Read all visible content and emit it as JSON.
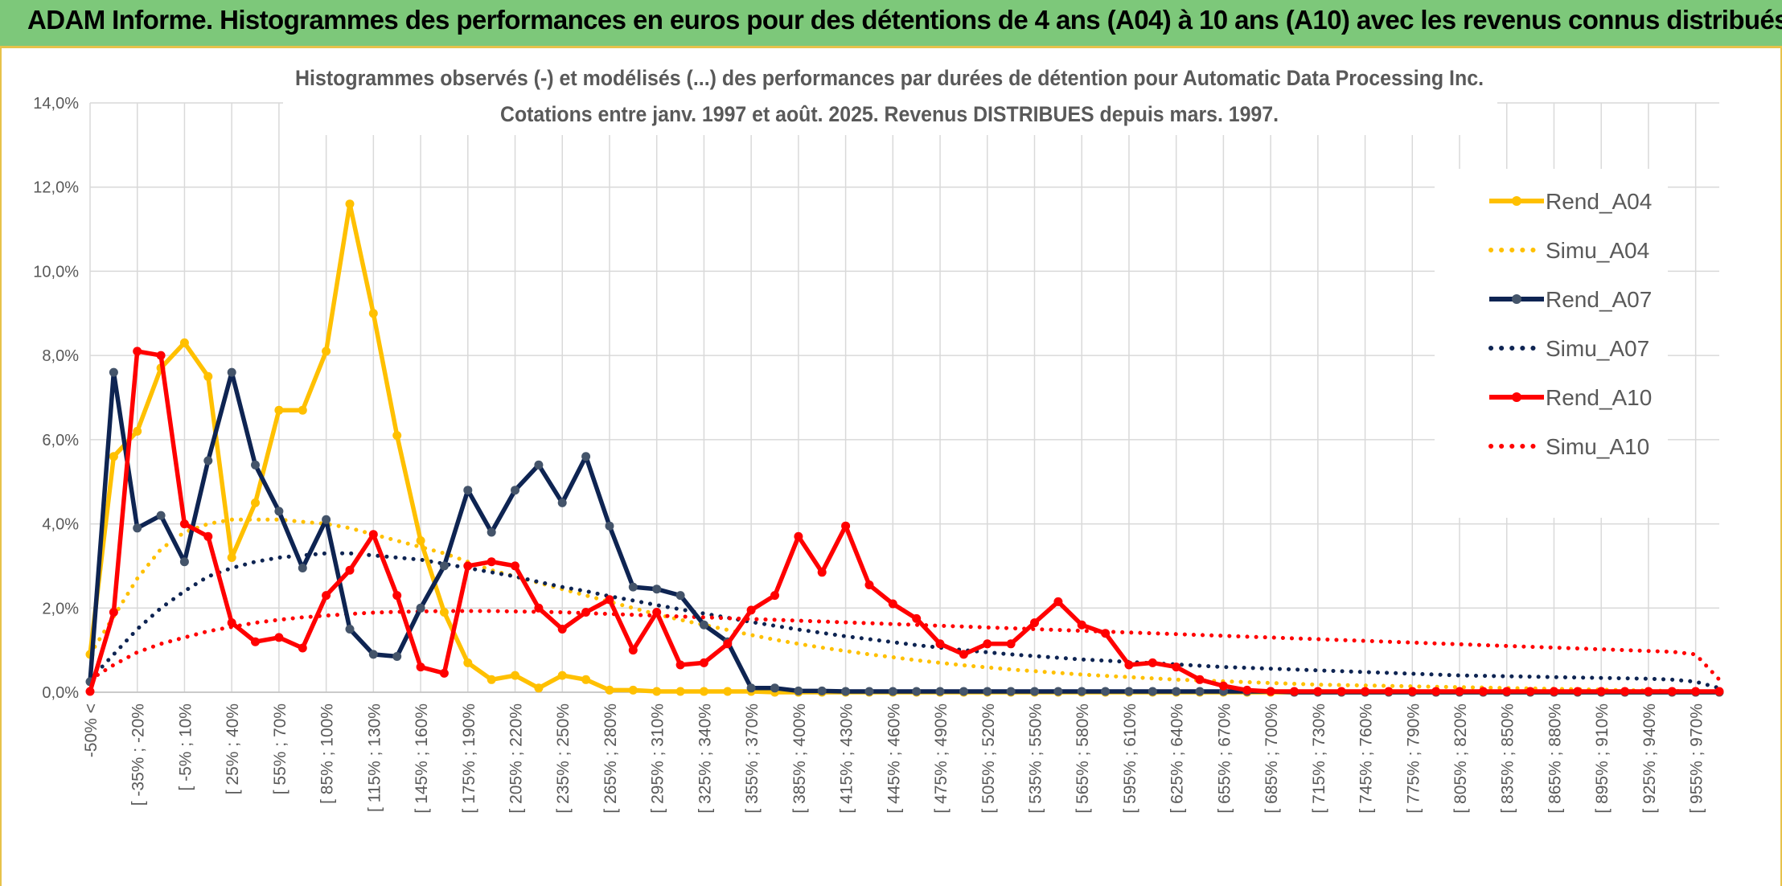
{
  "banner": {
    "title": "ADAM Informe. Histogrammes des performances en euros pour des détentions de 4 ans (A04) à 10 ans (A10) avec les revenus connus distribués"
  },
  "chart_data": {
    "type": "line",
    "title_line1": "Histogrammes observés (-) et modélisés (...) des performances par durées de détention pour Automatic Data Processing Inc.",
    "title_line2": "Cotations entre janv. 1997 et août. 2025. Revenus DISTRIBUES depuis mars. 1997.",
    "ylim": [
      0,
      14
    ],
    "y_ticks": [
      "0,0%",
      "2,0%",
      "4,0%",
      "6,0%",
      "8,0%",
      "10,0%",
      "12,0%",
      "14,0%"
    ],
    "x_tick_labels": [
      "-50% <",
      "[ -35% ; -20%",
      "[ -5% ; 10%",
      "[ 25% ; 40%",
      "[ 55% ; 70%",
      "[ 85% ; 100%",
      "[ 115% ; 130%",
      "[ 145% ; 160%",
      "[ 175% ; 190%",
      "[ 205% ; 220%",
      "[ 235% ; 250%",
      "[ 265% ; 280%",
      "[ 295% ; 310%",
      "[ 325% ; 340%",
      "[ 355% ; 370%",
      "[ 385% ; 400%",
      "[ 415% ; 430%",
      "[ 445% ; 460%",
      "[ 475% ; 490%",
      "[ 505% ; 520%",
      "[ 535% ; 550%",
      "[ 565% ; 580%",
      "[ 595% ; 610%",
      "[ 625% ; 640%",
      "[ 655% ; 670%",
      "[ 685% ; 700%",
      "[ 715% ; 730%",
      "[ 745% ; 760%",
      "[ 775% ; 790%",
      "[ 805% ; 820%",
      "[ 835% ; 850%",
      "[ 865% ; 880%",
      "[ 895% ; 910%",
      "[ 925% ; 940%",
      "[ 955% ; 970%"
    ],
    "category_count": 70,
    "legend_position": "right",
    "grid": true,
    "series": [
      {
        "name": "Rend_A04",
        "color": "#ffc000",
        "style": "solid",
        "markers": true,
        "values": [
          0.9,
          5.6,
          6.2,
          7.7,
          8.3,
          7.5,
          3.2,
          4.5,
          6.7,
          6.7,
          8.1,
          11.6,
          9.0,
          6.1,
          3.6,
          1.9,
          0.7,
          0.3,
          0.4,
          0.1,
          0.4,
          0.3,
          0.05,
          0.05,
          0.02,
          0.02,
          0.02,
          0.02,
          0.02,
          0,
          0,
          0,
          0,
          0,
          0,
          0,
          0,
          0,
          0,
          0,
          0,
          0,
          0,
          0,
          0,
          0,
          0,
          0,
          0,
          0,
          0,
          0,
          0,
          0,
          0,
          0,
          0,
          0,
          0,
          0,
          0,
          0,
          0,
          0,
          0,
          0,
          0,
          0,
          0,
          0
        ]
      },
      {
        "name": "Simu_A04",
        "color": "#ffc000",
        "style": "dotted",
        "markers": false,
        "values": [
          0.9,
          1.8,
          2.7,
          3.4,
          3.8,
          4.0,
          4.1,
          4.1,
          4.1,
          4.05,
          4.0,
          3.9,
          3.75,
          3.6,
          3.45,
          3.3,
          3.1,
          2.9,
          2.75,
          2.6,
          2.45,
          2.3,
          2.15,
          2.0,
          1.85,
          1.72,
          1.6,
          1.48,
          1.36,
          1.25,
          1.15,
          1.06,
          0.98,
          0.9,
          0.83,
          0.76,
          0.7,
          0.64,
          0.59,
          0.54,
          0.5,
          0.46,
          0.42,
          0.39,
          0.36,
          0.33,
          0.3,
          0.28,
          0.26,
          0.24,
          0.22,
          0.2,
          0.18,
          0.17,
          0.16,
          0.15,
          0.14,
          0.13,
          0.12,
          0.11,
          0.1,
          0.09,
          0.08,
          0.07,
          0.06,
          0.05,
          0.04,
          0.03,
          0.02,
          0.01
        ]
      },
      {
        "name": "Rend_A07",
        "color": "#0e2452",
        "style": "solid",
        "markers": true,
        "values": [
          0.25,
          7.6,
          3.9,
          4.2,
          3.1,
          5.5,
          7.6,
          5.4,
          4.3,
          2.95,
          4.1,
          1.5,
          0.9,
          0.85,
          2.0,
          3.0,
          4.8,
          3.8,
          4.8,
          5.4,
          4.5,
          5.6,
          3.95,
          2.5,
          2.45,
          2.3,
          1.6,
          1.2,
          0.1,
          0.1,
          0.03,
          0.03,
          0.02,
          0.02,
          0.02,
          0.02,
          0.02,
          0.02,
          0.02,
          0.02,
          0.02,
          0.02,
          0.02,
          0.02,
          0.02,
          0.02,
          0.02,
          0.02,
          0.02,
          0.02,
          0.02,
          0,
          0,
          0,
          0,
          0,
          0,
          0,
          0,
          0,
          0,
          0,
          0,
          0,
          0,
          0,
          0,
          0,
          0,
          0
        ]
      },
      {
        "name": "Simu_A07",
        "color": "#0e2452",
        "style": "dotted",
        "markers": false,
        "values": [
          0.3,
          0.9,
          1.5,
          2.0,
          2.4,
          2.75,
          2.95,
          3.1,
          3.2,
          3.25,
          3.3,
          3.3,
          3.25,
          3.2,
          3.15,
          3.05,
          2.95,
          2.85,
          2.75,
          2.62,
          2.5,
          2.4,
          2.28,
          2.18,
          2.07,
          1.97,
          1.87,
          1.77,
          1.67,
          1.58,
          1.49,
          1.41,
          1.33,
          1.26,
          1.19,
          1.12,
          1.06,
          1.0,
          0.95,
          0.9,
          0.86,
          0.82,
          0.78,
          0.75,
          0.72,
          0.69,
          0.66,
          0.63,
          0.6,
          0.58,
          0.56,
          0.54,
          0.52,
          0.5,
          0.48,
          0.46,
          0.44,
          0.42,
          0.4,
          0.39,
          0.38,
          0.37,
          0.36,
          0.35,
          0.34,
          0.33,
          0.32,
          0.3,
          0.25,
          0.1
        ]
      },
      {
        "name": "Rend_A10",
        "color": "#ff0000",
        "style": "solid",
        "markers": true,
        "values": [
          0.02,
          1.9,
          8.1,
          8.0,
          4.0,
          3.7,
          1.65,
          1.2,
          1.3,
          1.05,
          2.3,
          2.9,
          3.75,
          2.3,
          0.6,
          0.45,
          3.0,
          3.1,
          3.0,
          2.0,
          1.5,
          1.9,
          2.2,
          1.0,
          1.9,
          0.65,
          0.7,
          1.15,
          1.95,
          2.3,
          3.7,
          2.85,
          3.95,
          2.55,
          2.1,
          1.75,
          1.15,
          0.9,
          1.15,
          1.15,
          1.65,
          2.15,
          1.6,
          1.4,
          0.65,
          0.7,
          0.6,
          0.3,
          0.15,
          0.05,
          0.02,
          0.02,
          0.02,
          0.02,
          0.02,
          0.02,
          0.02,
          0.02,
          0.02,
          0.02,
          0.02,
          0.02,
          0.02,
          0.02,
          0.02,
          0.02,
          0.02,
          0.02,
          0.02,
          0.02
        ]
      },
      {
        "name": "Simu_A10",
        "color": "#ff0000",
        "style": "dotted",
        "markers": false,
        "values": [
          0.3,
          0.65,
          0.95,
          1.15,
          1.3,
          1.45,
          1.55,
          1.65,
          1.72,
          1.78,
          1.82,
          1.86,
          1.89,
          1.91,
          1.92,
          1.93,
          1.93,
          1.93,
          1.92,
          1.91,
          1.9,
          1.88,
          1.86,
          1.84,
          1.82,
          1.8,
          1.78,
          1.76,
          1.74,
          1.72,
          1.7,
          1.68,
          1.66,
          1.64,
          1.62,
          1.6,
          1.58,
          1.56,
          1.54,
          1.52,
          1.5,
          1.48,
          1.46,
          1.44,
          1.42,
          1.4,
          1.38,
          1.36,
          1.34,
          1.32,
          1.3,
          1.28,
          1.26,
          1.24,
          1.22,
          1.2,
          1.18,
          1.16,
          1.14,
          1.12,
          1.1,
          1.08,
          1.06,
          1.04,
          1.02,
          1.0,
          0.98,
          0.96,
          0.9,
          0.3
        ]
      }
    ]
  }
}
